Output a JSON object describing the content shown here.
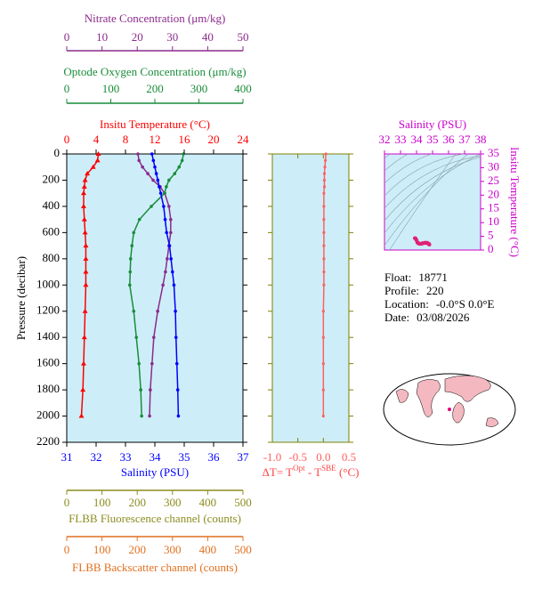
{
  "chart_data": [
    {
      "type": "profile",
      "ylabel": "Pressure (decibar)",
      "ylim": [
        0,
        2200
      ],
      "y_reversed": true,
      "yticks": [
        0,
        200,
        400,
        600,
        800,
        1000,
        1200,
        1400,
        1600,
        1800,
        2000,
        2200
      ],
      "y": [
        0,
        50,
        100,
        150,
        200,
        250,
        300,
        400,
        500,
        600,
        700,
        800,
        900,
        1000,
        1200,
        1400,
        1600,
        1800,
        2000
      ],
      "axes": [
        {
          "label": "Nitrate Concentration (μm/kg)",
          "color": "#8b2a8b",
          "xlim": [
            0,
            50
          ],
          "xticks": [
            0,
            10,
            20,
            30,
            40,
            50
          ],
          "values": [
            20.2,
            20.5,
            21.5,
            23,
            24.5,
            26.5,
            27.8,
            29,
            29.5,
            29.5,
            29,
            28.5,
            28,
            27.3,
            25.8,
            24.7,
            24.2,
            23.7,
            23.5
          ]
        },
        {
          "label": "Optode Oxygen Concentration (μm/kg)",
          "color": "#1a8c3a",
          "xlim": [
            0,
            400
          ],
          "xticks": [
            0,
            100,
            200,
            300,
            400
          ],
          "values": [
            265,
            262,
            255,
            245,
            232,
            226,
            222,
            192,
            165,
            152,
            148,
            145,
            144,
            143,
            152,
            158,
            164,
            168,
            170
          ]
        },
        {
          "label": "Insitu Temperature (°C)",
          "color": "#ff0000",
          "xlim": [
            0,
            24
          ],
          "xticks": [
            0,
            4,
            8,
            12,
            16,
            20,
            24
          ],
          "marker": "triangle",
          "values": [
            4.3,
            4.2,
            3.6,
            2.8,
            2.5,
            2.4,
            2.3,
            2.3,
            2.4,
            2.5,
            2.6,
            2.6,
            2.6,
            2.6,
            2.5,
            2.4,
            2.3,
            2.2,
            2.0
          ]
        },
        {
          "label": "Salinity (PSU)",
          "color": "#0000ff",
          "xlim": [
            31,
            37
          ],
          "xticks": [
            31,
            32,
            33,
            34,
            35,
            36,
            37
          ],
          "values": [
            33.9,
            33.95,
            34.0,
            34.05,
            34.1,
            34.15,
            34.2,
            34.3,
            34.35,
            34.4,
            34.5,
            34.55,
            34.6,
            34.65,
            34.7,
            34.72,
            34.75,
            34.78,
            34.8
          ]
        },
        {
          "label": "FLBB Fluorescence channel (counts)",
          "color": "#8c8c20",
          "xlim": [
            0,
            500
          ],
          "xticks": [
            0,
            100,
            200,
            300,
            400,
            500
          ]
        },
        {
          "label": "FLBB Backscatter channel (counts)",
          "color": "#e07020",
          "xlim": [
            0,
            500
          ],
          "xticks": [
            0,
            100,
            200,
            300,
            400,
            500
          ]
        }
      ]
    },
    {
      "type": "delta",
      "xlabel": [
        "ΔT= T",
        "Opt",
        " - T",
        "SBE",
        " (°C)"
      ],
      "color": "#ff6060",
      "axis_color": "#808000",
      "xlim": [
        -1.0,
        0.5
      ],
      "xticks": [
        {
          "value": -1.0,
          "label": "-1.0"
        },
        -0.5,
        {
          "value": 0.0,
          "label": "0.0"
        },
        0.5
      ],
      "values": [
        0.05,
        0.04,
        0.03,
        0.02,
        0.02,
        0.02,
        0.01,
        0.01,
        0.01,
        0.01,
        0.01,
        0.01,
        0.01,
        0.01,
        0.0,
        0.0,
        0.0,
        0.0,
        0.0
      ]
    },
    {
      "type": "ts",
      "color": "#e0207a",
      "axis_color": "#cc00cc",
      "xlim": [
        32,
        38
      ],
      "xticks": [
        32,
        33,
        34,
        35,
        36,
        37,
        38
      ],
      "ylim": [
        0,
        35
      ],
      "yticks": [
        0,
        5,
        10,
        15,
        20,
        25,
        30,
        35
      ]
    }
  ],
  "info": [
    [
      "Float:",
      "18771"
    ],
    [
      "Profile:",
      "220"
    ],
    [
      "Location:",
      "-0.0°S   0.0°E"
    ],
    [
      "Date:",
      "03/08/2026"
    ]
  ]
}
